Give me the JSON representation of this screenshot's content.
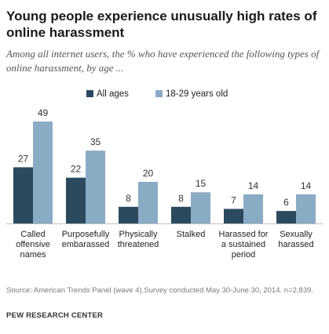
{
  "header": {
    "title": "Young people experience unusually high rates of online harassment",
    "subtitle": "Among all internet users, the % who have experienced the following types of online harassment, by age ..."
  },
  "footer": {
    "source": "Source: American Trends Panel (wave 4).Survey conducted May 30-June 30, 2014. n=2,839.",
    "brand": "PEW RESEARCH CENTER"
  },
  "chart_data": {
    "type": "bar",
    "title": "Young people experience unusually high rates of online harassment",
    "subtitle": "Among all internet users, the % who have experienced the following types of online harassment, by age ...",
    "categories": [
      [
        "Called",
        "offensive",
        "names"
      ],
      [
        "Purposefully",
        "embarassed"
      ],
      [
        "Physically",
        "threatened"
      ],
      [
        "Stalked"
      ],
      [
        "Harassed for",
        "a sustained",
        "period"
      ],
      [
        "Sexually",
        "harassed"
      ]
    ],
    "series": [
      {
        "name": "All ages",
        "values": [
          27,
          22,
          8,
          8,
          7,
          6
        ],
        "color": "#2b4a5e"
      },
      {
        "name": "18-29 years old",
        "values": [
          49,
          35,
          20,
          15,
          14,
          14
        ],
        "color": "#8aabc4"
      }
    ],
    "ylim": [
      0,
      49
    ],
    "grid": false,
    "legend_position": "top-center"
  }
}
